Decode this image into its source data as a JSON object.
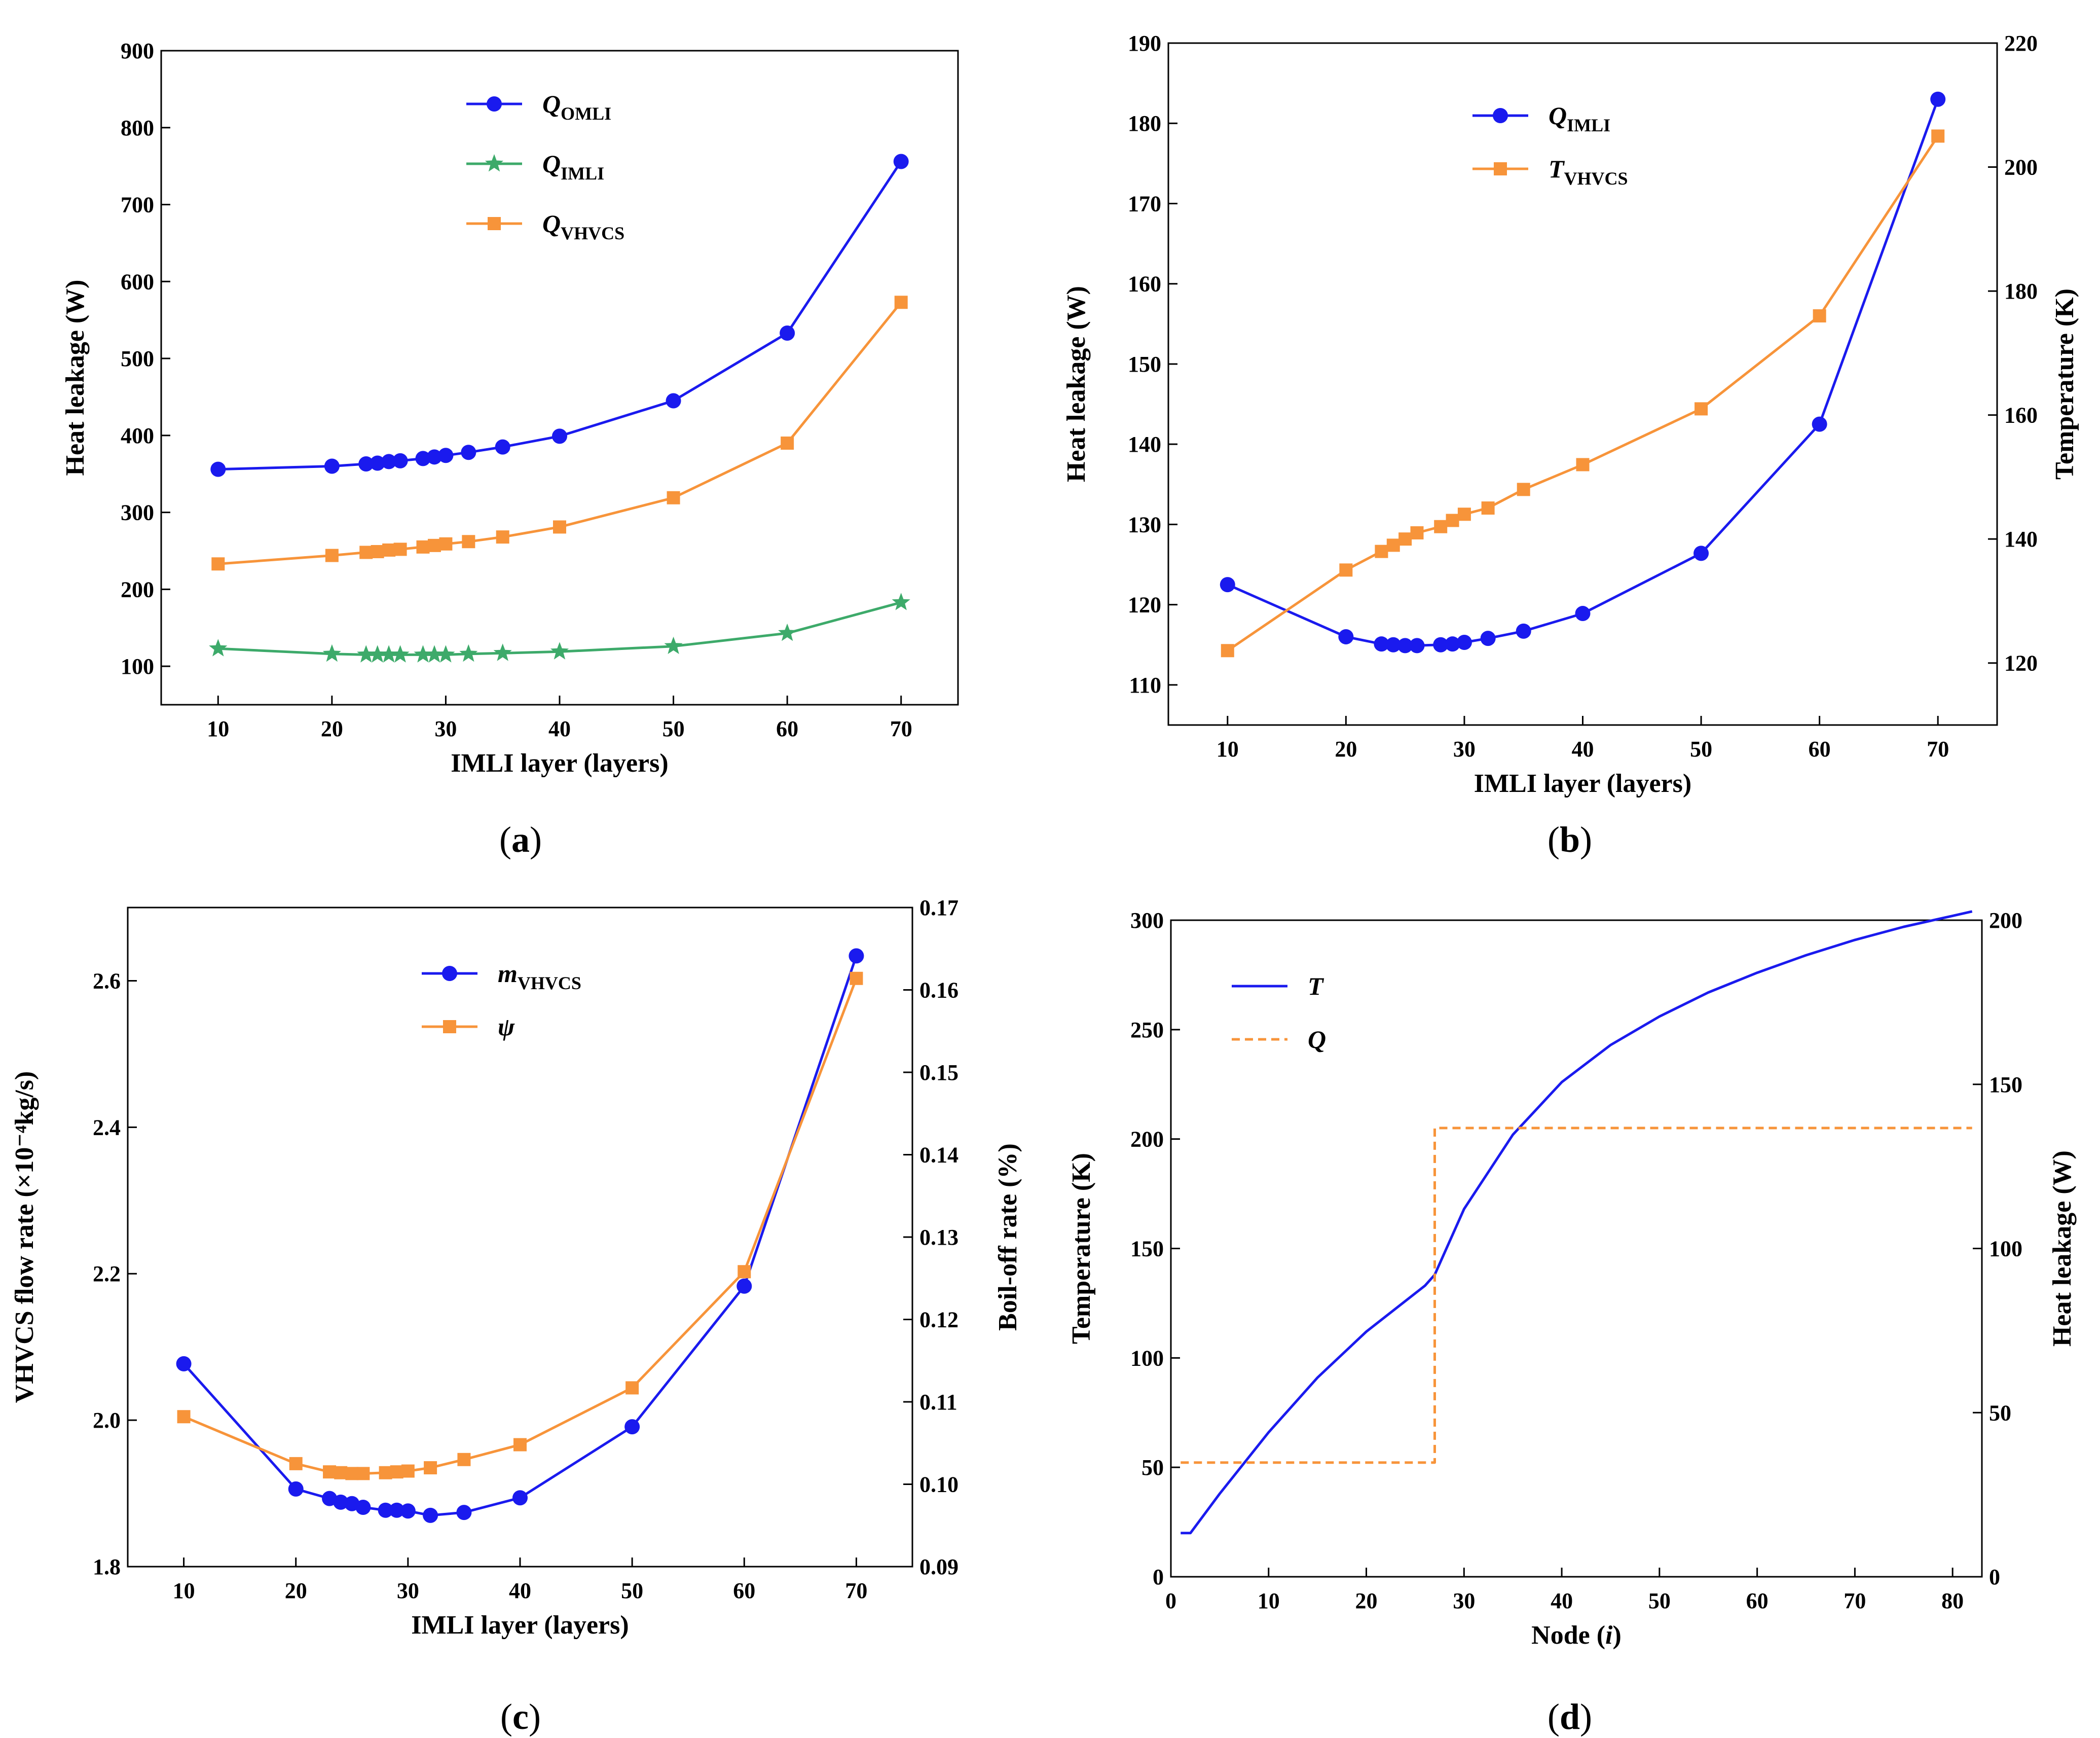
{
  "colors": {
    "blue": "#1a1aee",
    "green": "#3daa6a",
    "orange": "#f7943a",
    "axis": "#000000",
    "grid": "none"
  },
  "panel_labels": {
    "a": "a",
    "b": "b",
    "c": "c",
    "d": "d"
  },
  "chart_data": [
    {
      "id": "a",
      "type": "line",
      "title": "",
      "xlabel": "IMLI layer (layers)",
      "ylabel": "Heat leakage (W)",
      "xlim": [
        5,
        75
      ],
      "ylim": [
        50,
        900
      ],
      "xticks": [
        10,
        20,
        30,
        40,
        50,
        60,
        70
      ],
      "yticks": [
        100,
        200,
        300,
        400,
        500,
        600,
        700,
        800,
        900
      ],
      "x": [
        10,
        20,
        23,
        24,
        25,
        26,
        28,
        29,
        30,
        32,
        35,
        40,
        50,
        60,
        70
      ],
      "series": [
        {
          "name": "Q",
          "sub": "OMLI",
          "color": "#1a1aee",
          "marker": "circle",
          "axis": "left",
          "values": [
            356,
            360,
            363,
            364,
            366,
            367,
            370,
            372,
            374,
            378,
            385,
            399,
            445,
            533,
            756
          ]
        },
        {
          "name": "Q",
          "sub": "IMLI",
          "color": "#3daa6a",
          "marker": "star",
          "axis": "left",
          "values": [
            123,
            116,
            115,
            115,
            115,
            115,
            115,
            115,
            115,
            116,
            117,
            119,
            126,
            143,
            183
          ]
        },
        {
          "name": "Q",
          "sub": "VHVCS",
          "color": "#f7943a",
          "marker": "square",
          "axis": "left",
          "values": [
            233,
            244,
            248,
            249,
            251,
            252,
            255,
            257,
            259,
            262,
            268,
            281,
            319,
            390,
            573
          ]
        }
      ],
      "legend": "top-center"
    },
    {
      "id": "b",
      "type": "line",
      "title": "",
      "xlabel": "IMLI layer (layers)",
      "ylabel": "Heat leakage (W)",
      "y2label": "Temperature (K)",
      "xlim": [
        5,
        75
      ],
      "ylim": [
        105,
        190
      ],
      "y2lim": [
        110,
        220
      ],
      "xticks": [
        10,
        20,
        30,
        40,
        50,
        60,
        70
      ],
      "yticks": [
        110,
        120,
        130,
        140,
        150,
        160,
        170,
        180,
        190
      ],
      "y2ticks": [
        120,
        140,
        160,
        180,
        200,
        220
      ],
      "x": [
        10,
        20,
        23,
        24,
        25,
        26,
        28,
        29,
        30,
        32,
        35,
        40,
        50,
        60,
        70
      ],
      "series": [
        {
          "name": "Q",
          "sub": "IMLI",
          "color": "#1a1aee",
          "marker": "circle",
          "axis": "left",
          "values": [
            122.5,
            116.0,
            115.1,
            115.0,
            114.9,
            114.9,
            115.0,
            115.1,
            115.3,
            115.8,
            116.7,
            118.9,
            126.4,
            142.5,
            183.0
          ]
        },
        {
          "name": "T",
          "sub": "VHVCS",
          "color": "#f7943a",
          "marker": "square",
          "axis": "right",
          "values": [
            122,
            135,
            138,
            139,
            140,
            141,
            142,
            143,
            144,
            145,
            148,
            152,
            161,
            176,
            205
          ]
        }
      ],
      "legend": "top-left"
    },
    {
      "id": "c",
      "type": "line",
      "title": "",
      "xlabel": "IMLI layer (layers)",
      "ylabel": "VHVCS flow rate (×10⁻⁴kg/s)",
      "y2label": "Boil-off rate (%)",
      "xlim": [
        5,
        75
      ],
      "ylim": [
        1.8,
        2.7
      ],
      "y2lim": [
        0.09,
        0.17
      ],
      "xticks": [
        10,
        20,
        30,
        40,
        50,
        60,
        70
      ],
      "yticks": [
        1.8,
        2.0,
        2.2,
        2.4,
        2.6
      ],
      "y2ticks": [
        0.09,
        0.1,
        0.11,
        0.12,
        0.13,
        0.14,
        0.15,
        0.16,
        0.17
      ],
      "x": [
        10,
        20,
        23,
        24,
        25,
        26,
        28,
        29,
        30,
        32,
        35,
        40,
        50,
        60,
        70
      ],
      "series": [
        {
          "name": "m",
          "sub": "VHVCS",
          "color": "#1a1aee",
          "marker": "circle",
          "axis": "left",
          "values": [
            2.077,
            1.906,
            1.893,
            1.888,
            1.886,
            1.881,
            1.877,
            1.877,
            1.876,
            1.87,
            1.874,
            1.894,
            1.991,
            2.183,
            2.634
          ]
        },
        {
          "name": "ψ",
          "sub": "",
          "color": "#f7943a",
          "marker": "square",
          "axis": "right",
          "values": [
            0.1082,
            0.1025,
            0.1015,
            0.1014,
            0.1013,
            0.1013,
            0.1014,
            0.1015,
            0.1016,
            0.102,
            0.103,
            0.1048,
            0.1117,
            0.1258,
            0.1614
          ]
        }
      ],
      "legend": "top-center"
    },
    {
      "id": "d",
      "type": "line",
      "title": "",
      "xlabel": "Node (i)",
      "ylabel": "Temperature (K)",
      "y2label": "Heat leakage (W)",
      "xlim": [
        0,
        83
      ],
      "ylim": [
        0,
        300
      ],
      "y2lim": [
        0,
        200
      ],
      "xticks": [
        0,
        10,
        20,
        30,
        40,
        50,
        60,
        70,
        80
      ],
      "yticks": [
        0,
        50,
        100,
        150,
        200,
        250,
        300
      ],
      "y2ticks": [
        0,
        50,
        100,
        150,
        200
      ],
      "series": [
        {
          "name": "T",
          "color": "#1a1aee",
          "style": "solid",
          "axis": "left",
          "x": [
            1,
            2,
            5,
            10,
            15,
            20,
            26,
            27,
            30,
            35,
            40,
            45,
            50,
            55,
            60,
            65,
            70,
            75,
            80,
            82
          ],
          "values": [
            20,
            20,
            38,
            66,
            91,
            112,
            133,
            138,
            168,
            202,
            226,
            243,
            256,
            267,
            276,
            284,
            291,
            297,
            302,
            304
          ]
        },
        {
          "name": "Q",
          "color": "#f7943a",
          "style": "dashed",
          "axis": "right",
          "x": [
            1,
            26,
            26,
            27,
            27,
            82
          ],
          "values": [
            34.8,
            34.8,
            34.8,
            34.8,
            136.7,
            136.7
          ]
        }
      ],
      "legend": "top-left"
    }
  ]
}
